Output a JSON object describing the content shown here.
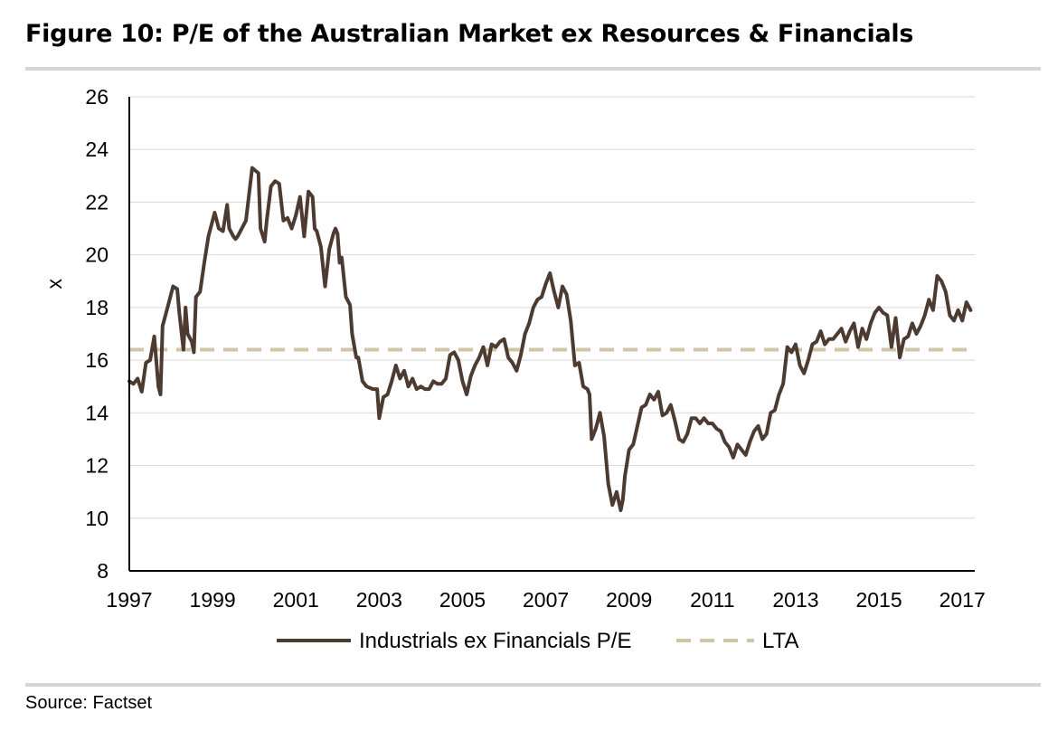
{
  "title": "Figure 10: P/E of the Australian Market ex Resources & Financials",
  "source": "Source: Factset",
  "colors": {
    "series": "#4d3b30",
    "lta": "#d3c4a3",
    "grid": "#d9d9d9"
  },
  "chart_data": {
    "type": "line",
    "title": "Figure 10: P/E of the Australian Market ex Resources & Financials",
    "xlabel": "",
    "ylabel": "x",
    "xlim": [
      1997,
      2017.3
    ],
    "ylim": [
      8,
      26
    ],
    "yticks": [
      8,
      10,
      12,
      14,
      16,
      18,
      20,
      22,
      24,
      26
    ],
    "xticks": [
      1997,
      1999,
      2001,
      2003,
      2005,
      2007,
      2009,
      2011,
      2013,
      2015,
      2017
    ],
    "grid": true,
    "legend": {
      "position": "bottom",
      "entries": [
        "Industrials ex Financials P/E",
        "LTA"
      ]
    },
    "series": [
      {
        "name": "Industrials ex Financials P/E",
        "style": "solid",
        "x": [
          1997.0,
          1997.1,
          1997.2,
          1997.3,
          1997.4,
          1997.5,
          1997.6,
          1997.7,
          1997.75,
          1997.8,
          1997.85,
          1997.95,
          1998.05,
          1998.15,
          1998.2,
          1998.3,
          1998.35,
          1998.4,
          1998.5,
          1998.55,
          1998.6,
          1998.7,
          1998.8,
          1998.9,
          1999.0,
          1999.05,
          1999.15,
          1999.25,
          1999.35,
          1999.4,
          1999.5,
          1999.55,
          1999.6,
          1999.7,
          1999.8,
          1999.95,
          2000.1,
          2000.15,
          2000.25,
          2000.3,
          2000.4,
          2000.5,
          2000.6,
          2000.7,
          2000.8,
          2000.9,
          2001.0,
          2001.1,
          2001.2,
          2001.3,
          2001.4,
          2001.45,
          2001.5,
          2001.6,
          2001.7,
          2001.8,
          2001.9,
          2001.95,
          2002.0,
          2002.05,
          2002.1,
          2002.2,
          2002.3,
          2002.35,
          2002.45,
          2002.5,
          2002.6,
          2002.7,
          2002.85,
          2002.95,
          2003.0,
          2003.1,
          2003.2,
          2003.3,
          2003.4,
          2003.5,
          2003.6,
          2003.7,
          2003.8,
          2003.9,
          2004.0,
          2004.1,
          2004.2,
          2004.3,
          2004.4,
          2004.5,
          2004.6,
          2004.7,
          2004.8,
          2004.9,
          2005.0,
          2005.1,
          2005.2,
          2005.3,
          2005.4,
          2005.5,
          2005.6,
          2005.7,
          2005.8,
          2005.9,
          2006.0,
          2006.1,
          2006.2,
          2006.3,
          2006.4,
          2006.5,
          2006.6,
          2006.7,
          2006.8,
          2006.9,
          2007.0,
          2007.1,
          2007.2,
          2007.3,
          2007.4,
          2007.5,
          2007.6,
          2007.7,
          2007.8,
          2007.9,
          2008.0,
          2008.05,
          2008.1,
          2008.2,
          2008.3,
          2008.4,
          2008.5,
          2008.6,
          2008.7,
          2008.8,
          2008.85,
          2008.9,
          2009.0,
          2009.1,
          2009.2,
          2009.3,
          2009.4,
          2009.5,
          2009.6,
          2009.7,
          2009.8,
          2009.9,
          2010.0,
          2010.1,
          2010.2,
          2010.3,
          2010.4,
          2010.5,
          2010.6,
          2010.7,
          2010.8,
          2010.9,
          2011.0,
          2011.1,
          2011.2,
          2011.3,
          2011.4,
          2011.5,
          2011.6,
          2011.7,
          2011.8,
          2011.9,
          2012.0,
          2012.1,
          2012.2,
          2012.3,
          2012.4,
          2012.5,
          2012.6,
          2012.7,
          2012.8,
          2012.9,
          2013.0,
          2013.1,
          2013.2,
          2013.3,
          2013.4,
          2013.5,
          2013.6,
          2013.7,
          2013.8,
          2013.9,
          2014.0,
          2014.1,
          2014.2,
          2014.3,
          2014.4,
          2014.5,
          2014.6,
          2014.7,
          2014.8,
          2014.9,
          2015.0,
          2015.1,
          2015.2,
          2015.3,
          2015.4,
          2015.5,
          2015.6,
          2015.7,
          2015.8,
          2015.9,
          2016.0,
          2016.1,
          2016.2,
          2016.3,
          2016.4,
          2016.5,
          2016.6,
          2016.7,
          2016.8,
          2016.9,
          2017.0,
          2017.1,
          2017.2
        ],
        "values": [
          15.2,
          15.1,
          15.3,
          14.8,
          15.9,
          16.0,
          16.9,
          15.0,
          14.7,
          17.3,
          17.6,
          18.2,
          18.8,
          18.7,
          17.8,
          16.4,
          18.0,
          17.0,
          16.7,
          16.3,
          18.4,
          18.6,
          19.7,
          20.7,
          21.3,
          21.6,
          21.0,
          20.9,
          21.9,
          21.0,
          20.7,
          20.6,
          20.7,
          21.0,
          21.3,
          23.3,
          23.1,
          21.0,
          20.5,
          21.3,
          22.6,
          22.8,
          22.7,
          21.3,
          21.4,
          21.0,
          21.5,
          22.2,
          20.7,
          22.4,
          22.2,
          21.0,
          20.9,
          20.3,
          18.8,
          20.2,
          20.8,
          21.0,
          20.8,
          19.7,
          19.9,
          18.4,
          18.1,
          17.0,
          16.1,
          16.1,
          15.2,
          15.0,
          14.9,
          14.9,
          13.8,
          14.6,
          14.7,
          15.2,
          15.8,
          15.3,
          15.6,
          15.0,
          15.3,
          14.9,
          15.0,
          14.9,
          14.9,
          15.2,
          15.1,
          15.1,
          15.3,
          16.2,
          16.3,
          16.0,
          15.2,
          14.7,
          15.4,
          15.8,
          16.1,
          16.5,
          15.8,
          16.6,
          16.5,
          16.7,
          16.8,
          16.1,
          15.9,
          15.6,
          16.2,
          17.0,
          17.4,
          18.0,
          18.3,
          18.4,
          18.9,
          19.3,
          18.6,
          18.0,
          18.8,
          18.5,
          17.5,
          15.8,
          15.9,
          15.0,
          14.9,
          14.7,
          13.0,
          13.4,
          14.0,
          13.1,
          11.3,
          10.5,
          11.0,
          10.3,
          10.7,
          11.6,
          12.6,
          12.8,
          13.5,
          14.2,
          14.3,
          14.7,
          14.5,
          14.8,
          13.9,
          14.0,
          14.3,
          13.7,
          13.0,
          12.9,
          13.2,
          13.8,
          13.8,
          13.6,
          13.8,
          13.6,
          13.6,
          13.4,
          13.3,
          12.9,
          12.7,
          12.3,
          12.8,
          12.6,
          12.4,
          12.9,
          13.3,
          13.5,
          13.0,
          13.2,
          14.0,
          14.1,
          14.7,
          15.1,
          16.5,
          16.3,
          16.6,
          15.8,
          15.5,
          16.0,
          16.6,
          16.7,
          17.1,
          16.6,
          16.8,
          16.8,
          17.0,
          17.2,
          16.7,
          17.1,
          17.4,
          16.5,
          17.2,
          16.8,
          17.4,
          17.8,
          18.0,
          17.8,
          17.7,
          16.5,
          17.6,
          16.1,
          16.8,
          16.9,
          17.4,
          17.0,
          17.3,
          17.7,
          18.3,
          17.9,
          19.2,
          19.0,
          18.6,
          17.7,
          17.5,
          17.9,
          17.5,
          18.2,
          17.9
        ]
      },
      {
        "name": "LTA",
        "style": "dashed",
        "x": [
          1997,
          2017.2
        ],
        "values": [
          16.4,
          16.4
        ]
      }
    ]
  }
}
